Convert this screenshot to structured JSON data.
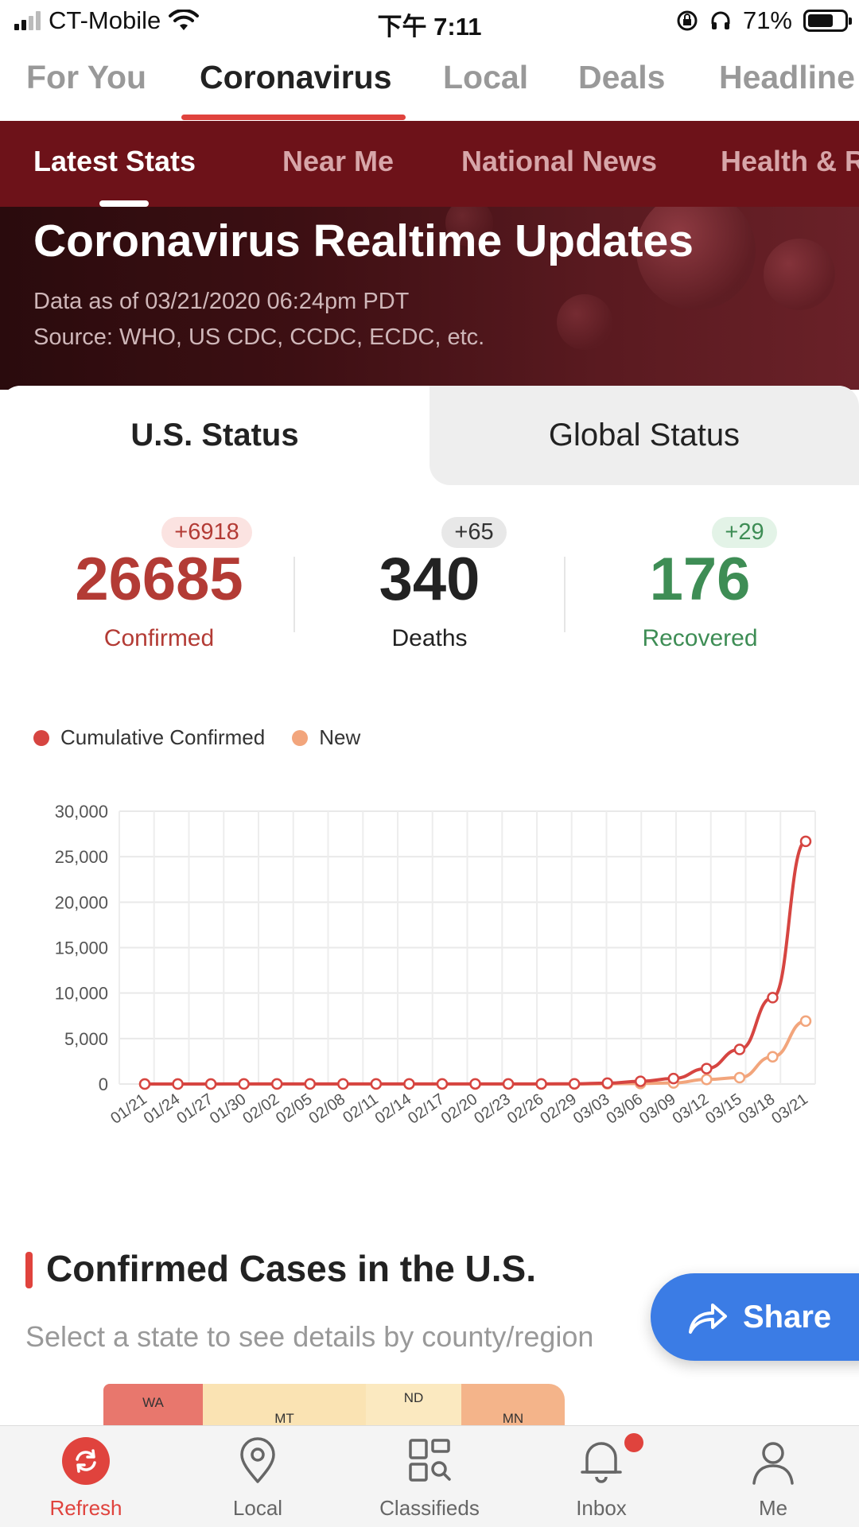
{
  "status_bar": {
    "carrier": "CT-Mobile",
    "time": "下午 7:11",
    "battery": "71%"
  },
  "top_tabs": [
    "For You",
    "Coronavirus",
    "Local",
    "Deals",
    "Headline"
  ],
  "sub_tabs": [
    "Latest Stats",
    "Near Me",
    "National News",
    "Health & R"
  ],
  "hero": {
    "title": "Coronavirus Realtime Updates",
    "data_as_of": "Data as of 03/21/2020 06:24pm PDT",
    "source": "Source: WHO, US CDC, CCDC, ECDC, etc."
  },
  "segments": {
    "us": "U.S. Status",
    "global": "Global Status"
  },
  "stats": {
    "confirmed": {
      "delta": "+6918",
      "value": "26685",
      "label": "Confirmed",
      "color": "#b33b35"
    },
    "deaths": {
      "delta": "+65",
      "value": "340",
      "label": "Deaths",
      "color": "#222222"
    },
    "recovered": {
      "delta": "+29",
      "value": "176",
      "label": "Recovered",
      "color": "#3e8d55"
    }
  },
  "legend": {
    "cumulative": "Cumulative Confirmed",
    "new": "New"
  },
  "chart_data": {
    "type": "line",
    "x": [
      "01/21",
      "01/24",
      "01/27",
      "01/30",
      "02/02",
      "02/05",
      "02/08",
      "02/11",
      "02/14",
      "02/17",
      "02/20",
      "02/23",
      "02/26",
      "02/29",
      "03/03",
      "03/06",
      "03/09",
      "03/12",
      "03/15",
      "03/18",
      "03/21"
    ],
    "series": [
      {
        "name": "Cumulative Confirmed",
        "color": "#d64541",
        "values": [
          1,
          2,
          5,
          6,
          11,
          12,
          12,
          13,
          15,
          15,
          15,
          15,
          16,
          22,
          100,
          300,
          600,
          1700,
          3800,
          9500,
          26685
        ]
      },
      {
        "name": "New",
        "color": "#f2a57c",
        "values": [
          1,
          1,
          1,
          1,
          1,
          0,
          0,
          0,
          0,
          0,
          0,
          0,
          2,
          5,
          20,
          60,
          120,
          500,
          700,
          3000,
          6918
        ]
      }
    ],
    "ylim": [
      0,
      30000
    ],
    "yticks": [
      "0",
      "5,000",
      "10,000",
      "15,000",
      "20,000",
      "25,000",
      "30,000"
    ],
    "grid": true,
    "legend": "top-left"
  },
  "confirmed_section": {
    "title": "Confirmed Cases in the U.S.",
    "subtitle": "Select a state to see details by county/region"
  },
  "map_states": [
    {
      "abbr": "WA",
      "color": "#e8776d"
    },
    {
      "abbr": "MT",
      "color": "#fae3b3"
    },
    {
      "abbr": "ND",
      "color": "#fbe9c0"
    },
    {
      "abbr": "MN",
      "color": "#f4b48a"
    }
  ],
  "share_label": "Share",
  "bottom_nav": [
    {
      "label": "Refresh",
      "icon": "refresh-icon",
      "active": true
    },
    {
      "label": "Local",
      "icon": "location-pin-icon"
    },
    {
      "label": "Classifieds",
      "icon": "classifieds-icon"
    },
    {
      "label": "Inbox",
      "icon": "bell-icon"
    },
    {
      "label": "Me",
      "icon": "person-icon"
    }
  ]
}
